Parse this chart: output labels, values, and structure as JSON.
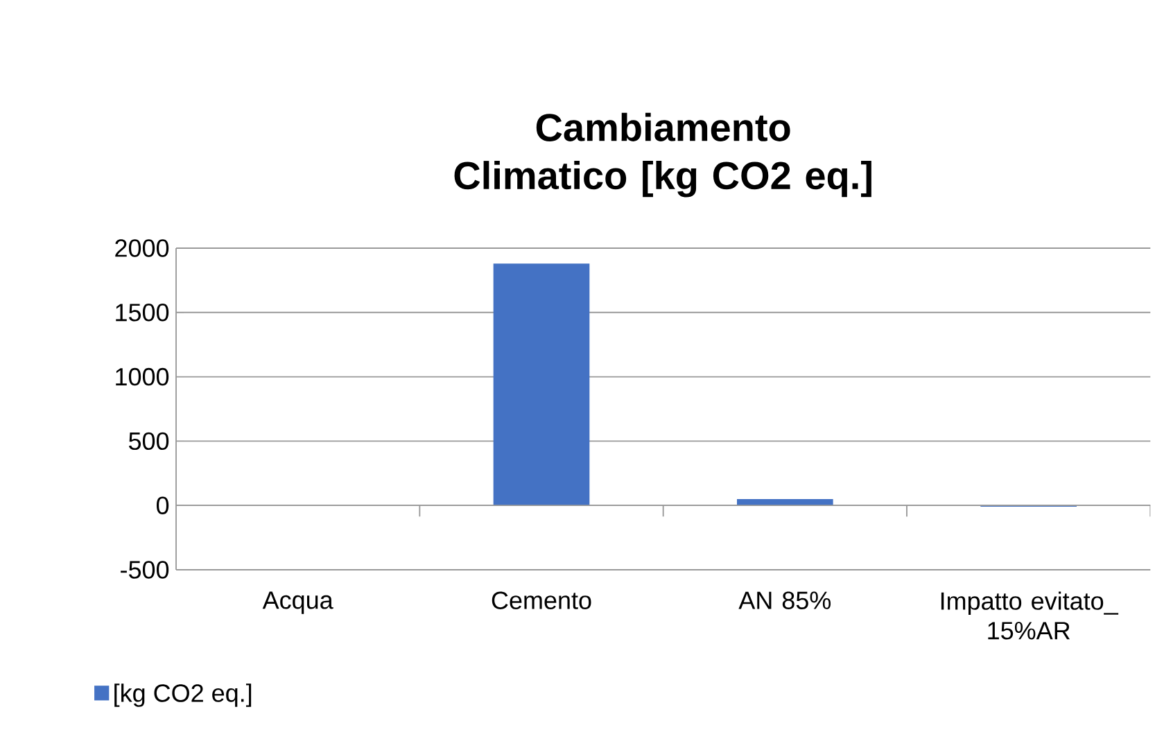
{
  "chart_data": {
    "type": "bar",
    "title": "Cambiamento Climatico [kg CO2 eq.]",
    "categories": [
      "Acqua",
      "Cemento",
      "AN 85%",
      "Impatto evitato_ 15%AR"
    ],
    "series": [
      {
        "name": "[kg CO2 eq.]",
        "color": "#4472c4",
        "values": [
          0,
          1880,
          50,
          -10
        ]
      }
    ],
    "ylim": [
      -500,
      2000
    ],
    "yticks": [
      -500,
      0,
      500,
      1000,
      1500,
      2000
    ],
    "grid": "y",
    "legend": "bottom left"
  }
}
